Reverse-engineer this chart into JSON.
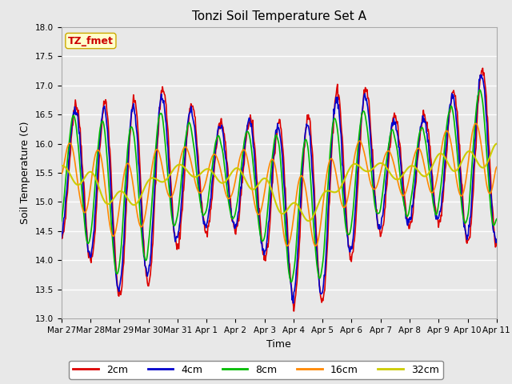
{
  "title": "Tonzi Soil Temperature Set A",
  "xlabel": "Time",
  "ylabel": "Soil Temperature (C)",
  "ylim": [
    13.0,
    18.0
  ],
  "yticks": [
    13.0,
    13.5,
    14.0,
    14.5,
    15.0,
    15.5,
    16.0,
    16.5,
    17.0,
    17.5,
    18.0
  ],
  "date_labels": [
    "Mar 27",
    "Mar 28",
    "Mar 29",
    "Mar 30",
    "Mar 31",
    "Apr 1",
    "Apr 2",
    "Apr 3",
    "Apr 4",
    "Apr 5",
    "Apr 6",
    "Apr 7",
    "Apr 8",
    "Apr 9",
    "Apr 10",
    "Apr 11"
  ],
  "annotation_text": "TZ_fmet",
  "annotation_color": "#cc0000",
  "annotation_bg": "#ffffcc",
  "annotation_border": "#ccaa00",
  "series": {
    "2cm": {
      "color": "#dd0000",
      "linewidth": 1.2
    },
    "4cm": {
      "color": "#0000cc",
      "linewidth": 1.2
    },
    "8cm": {
      "color": "#00bb00",
      "linewidth": 1.2
    },
    "16cm": {
      "color": "#ff8800",
      "linewidth": 1.2
    },
    "32cm": {
      "color": "#cccc00",
      "linewidth": 1.5
    }
  },
  "bg_color": "#e8e8e8",
  "grid_color": "#ffffff",
  "figsize": [
    6.4,
    4.8
  ],
  "dpi": 100
}
